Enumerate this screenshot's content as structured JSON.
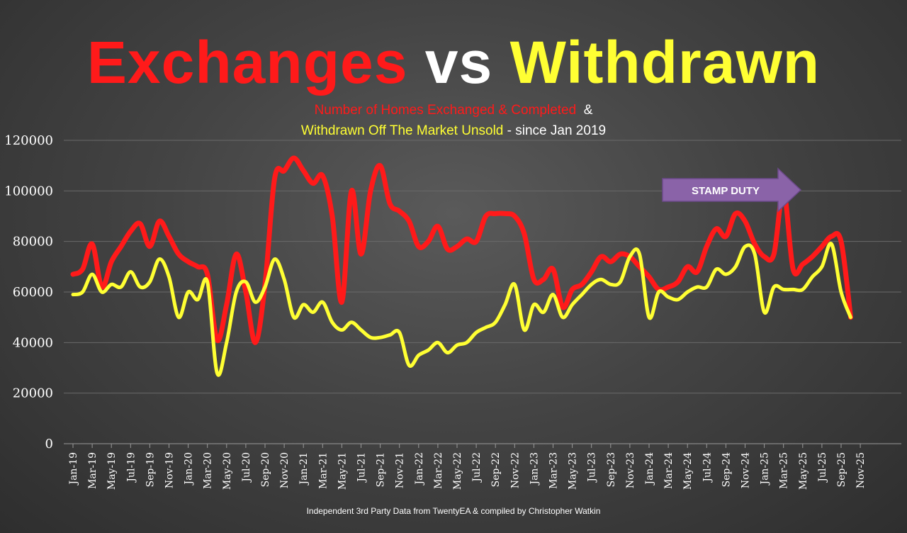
{
  "title": {
    "part1": "Exchanges",
    "part1_color": "#ff1a1a",
    "part2": " vs ",
    "part2_color": "#ffffff",
    "part3": "Withdrawn",
    "part3_color": "#ffff33"
  },
  "subtitle": {
    "line1_a": "Number of Homes Exchanged & Completed",
    "line1_b": "  &",
    "line2_a": "Withdrawn Off The Market Unsold",
    "line2_b": " - since Jan 2019"
  },
  "annotation": {
    "text": "STAMP DUTY",
    "color": "#8a63a8"
  },
  "footer": "Independent 3rd Party Data from TwentyEA  & compiled by Christopher Watkin",
  "chart_data": {
    "type": "line",
    "ylim": [
      0,
      120000
    ],
    "yticks": [
      "0",
      "20000",
      "40000",
      "60000",
      "80000",
      "100000",
      "120000"
    ],
    "ytick_values": [
      0,
      20000,
      40000,
      60000,
      80000,
      100000,
      120000
    ],
    "grid": true,
    "xtick_labels": [
      "Jan-19",
      "Mar-19",
      "May-19",
      "Jul-19",
      "Sep-19",
      "Nov-19",
      "Jan-20",
      "Mar-20",
      "May-20",
      "Jul-20",
      "Sep-20",
      "Nov-20",
      "Jan-21",
      "Mar-21",
      "May-21",
      "Jul-21",
      "Sep-21",
      "Nov-21",
      "Jan-22",
      "Mar-22",
      "May-22",
      "Jul-22",
      "Sep-22",
      "Nov-22",
      "Jan-23",
      "Mar-23",
      "May-23",
      "Jul-23",
      "Sep-23",
      "Nov-23",
      "Jan-24",
      "Mar-24",
      "May-24",
      "Jul-24",
      "Sep-24",
      "Nov-24",
      "Jan-25",
      "Mar-25",
      "May-25",
      "Jul-25",
      "Sep-25",
      "Nov-25"
    ],
    "series": [
      {
        "key": "exchanges",
        "color": "#ff1a1a",
        "values": [
          67000,
          69000,
          79000,
          62000,
          72000,
          78000,
          84000,
          87000,
          78000,
          88000,
          82000,
          75000,
          72000,
          70000,
          67000,
          41000,
          55000,
          75000,
          60000,
          40000,
          63000,
          105000,
          108000,
          113000,
          108000,
          103000,
          106000,
          90000,
          56000,
          100000,
          75000,
          100000,
          110000,
          95000,
          92000,
          88000,
          78000,
          80000,
          86000,
          77000,
          78000,
          81000,
          80000,
          90000,
          91000,
          91000,
          90000,
          83000,
          65000,
          65000,
          69000,
          54000,
          61000,
          63000,
          68000,
          74000,
          72000,
          75000,
          74000,
          70000,
          66000,
          61000,
          62000,
          64000,
          70000,
          68000,
          78000,
          85000,
          82000,
          91000,
          88000,
          79000,
          74000,
          75000,
          100000,
          69000,
          71000,
          74000,
          78000,
          82000,
          80000,
          50000
        ]
      },
      {
        "key": "withdrawn",
        "color": "#ffff33",
        "values": [
          59000,
          60000,
          67000,
          60000,
          63000,
          62000,
          68000,
          62000,
          64000,
          73000,
          66000,
          50000,
          60000,
          57000,
          64000,
          28000,
          40000,
          60000,
          64000,
          56000,
          62000,
          73000,
          65000,
          50000,
          55000,
          52000,
          56000,
          48000,
          45000,
          48000,
          45000,
          42000,
          42000,
          43000,
          44000,
          31000,
          35000,
          37000,
          40000,
          36000,
          39000,
          40000,
          44000,
          46000,
          48000,
          55000,
          63000,
          45000,
          55000,
          52000,
          59000,
          50000,
          55000,
          59000,
          63000,
          65000,
          63000,
          64000,
          74000,
          75000,
          50000,
          60000,
          58000,
          57000,
          60000,
          62000,
          62000,
          69000,
          67000,
          70000,
          78000,
          75000,
          52000,
          62000,
          61000,
          61000,
          61000,
          66000,
          70000,
          79000,
          60000,
          50000
        ]
      }
    ]
  }
}
